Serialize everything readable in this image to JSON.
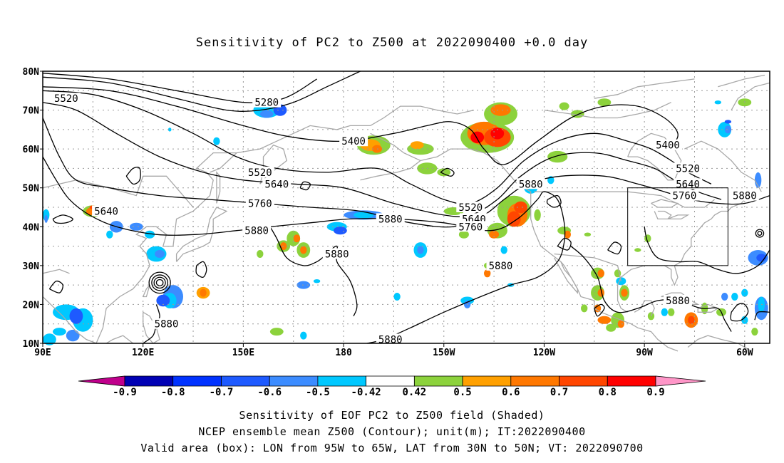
{
  "title": "Sensitivity of PC2 to Z500 at 2022090400 +0.0 day",
  "map": {
    "lon_labels": [
      "90E",
      "120E",
      "150E",
      "180",
      "150W",
      "120W",
      "90W",
      "60W"
    ],
    "lat_labels": [
      "80N",
      "70N",
      "60N",
      "50N",
      "40N",
      "30N",
      "20N",
      "10N"
    ],
    "valid_box": {
      "lon_min": "95W",
      "lon_max": "65W",
      "lat_min": "30N",
      "lat_max": "50N"
    },
    "contours": [
      {
        "value": "5280"
      },
      {
        "value": "5400"
      },
      {
        "value": "5520"
      },
      {
        "value": "5640"
      },
      {
        "value": "5760"
      },
      {
        "value": "5880"
      }
    ],
    "contour_labels": [
      {
        "text": "5520",
        "lon": 97,
        "lat": 73
      },
      {
        "text": "5280",
        "lon": 157,
        "lat": 72
      },
      {
        "text": "5400",
        "lon": 183,
        "lat": 62
      },
      {
        "text": "5520",
        "lon": 155,
        "lat": 54
      },
      {
        "text": "5640",
        "lon": 160,
        "lat": 51
      },
      {
        "text": "5760",
        "lon": 155,
        "lat": 46
      },
      {
        "text": "5640",
        "lon": 109,
        "lat": 44
      },
      {
        "text": "5880",
        "lon": 154,
        "lat": 39
      },
      {
        "text": "5880",
        "lon": 178,
        "lat": 33
      },
      {
        "text": "5880",
        "lon": 194,
        "lat": 42
      },
      {
        "text": "5520",
        "lon": 218,
        "lat": 45
      },
      {
        "text": "5640",
        "lon": 219,
        "lat": 42
      },
      {
        "text": "5760",
        "lon": 218,
        "lat": 40
      },
      {
        "text": "5880",
        "lon": 236,
        "lat": 51
      },
      {
        "text": "5880",
        "lon": 227,
        "lat": 30
      },
      {
        "text": "5400",
        "lon": 277,
        "lat": 61
      },
      {
        "text": "5520",
        "lon": 283,
        "lat": 55
      },
      {
        "text": "5640",
        "lon": 283,
        "lat": 51
      },
      {
        "text": "5760",
        "lon": 282,
        "lat": 48
      },
      {
        "text": "5880",
        "lon": 300,
        "lat": 48
      },
      {
        "text": "5880",
        "lon": 280,
        "lat": 21
      },
      {
        "text": "5880",
        "lon": 127,
        "lat": 15
      },
      {
        "text": "5880",
        "lon": 194,
        "lat": 11
      }
    ]
  },
  "colorbar": {
    "colors": [
      "#c0008c",
      "#0000b4",
      "#0032ff",
      "#1e5aff",
      "#3c8cff",
      "#00c8ff",
      "#ffffff",
      "#8cd23c",
      "#ffa000",
      "#ff7800",
      "#ff4600",
      "#ff0000",
      "#ff96c8"
    ],
    "ticks": [
      "-0.9",
      "-0.8",
      "-0.7",
      "-0.6",
      "-0.5",
      "-0.42",
      "0.42",
      "0.5",
      "0.6",
      "0.7",
      "0.8",
      "0.9"
    ]
  },
  "captions": [
    "Sensitivity of EOF PC2 to Z500 field (Shaded)",
    "NCEP ensemble mean Z500 (Contour); unit(m); IT:2022090400",
    "Valid area (box): LON from 95W to 65W, LAT from 30N to 50N; VT: 2022090700"
  ]
}
